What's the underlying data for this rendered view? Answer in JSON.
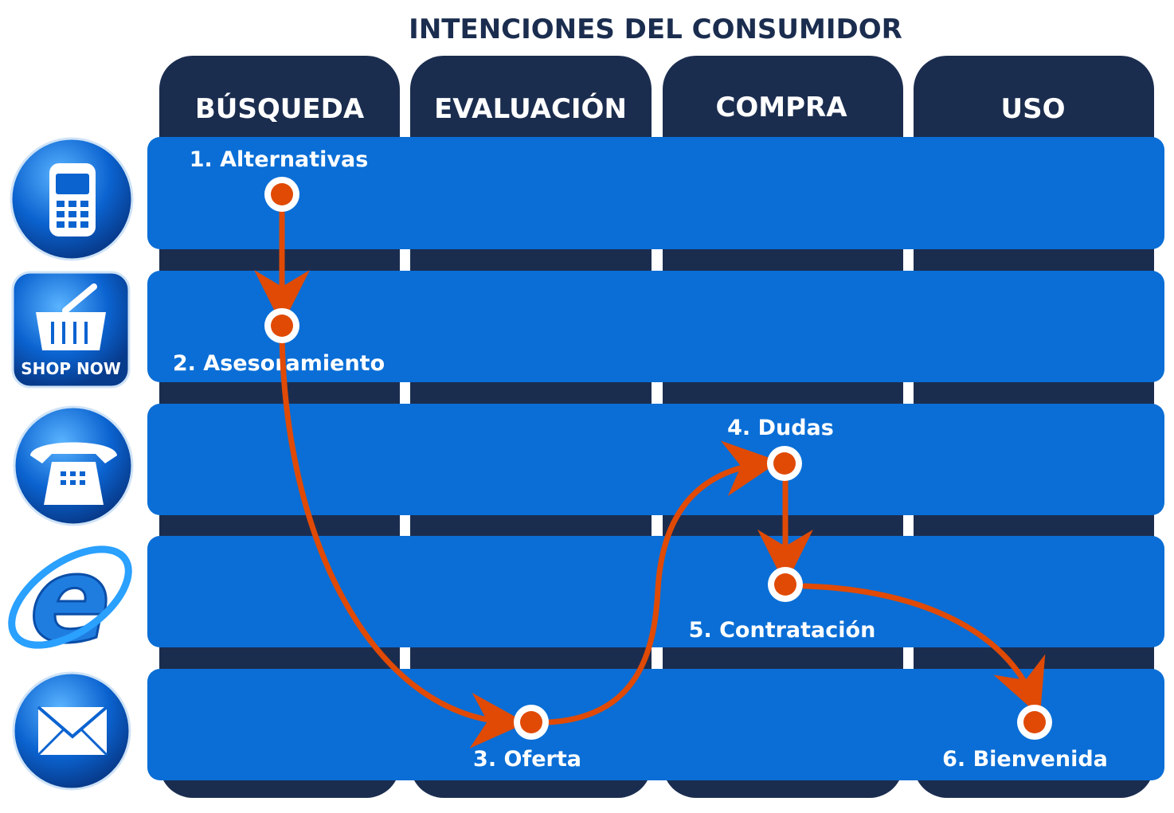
{
  "title": "INTENCIONES DEL CONSUMIDOR",
  "columns": [
    "BÚSQUEDA",
    "EVALUACIÓN",
    "COMPRA",
    "USO"
  ],
  "channels": [
    {
      "icon": "mobile-phone-icon"
    },
    {
      "icon": "shop-now-basket-icon",
      "label": "SHOP NOW"
    },
    {
      "icon": "telephone-icon"
    },
    {
      "icon": "internet-explorer-icon"
    },
    {
      "icon": "email-envelope-icon"
    }
  ],
  "steps": [
    {
      "label": "1. Alternativas",
      "column": "BÚSQUEDA",
      "channel_row": 1
    },
    {
      "label": "2. Asesoramiento",
      "column": "BÚSQUEDA",
      "channel_row": 2
    },
    {
      "label": "3. Oferta",
      "column": "EVALUACIÓN",
      "channel_row": 5
    },
    {
      "label": "4. Dudas",
      "column": "COMPRA",
      "channel_row": 3
    },
    {
      "label": "5. Contratación",
      "column": "COMPRA",
      "channel_row": 4
    },
    {
      "label": "6. Bienvenida",
      "column": "USO",
      "channel_row": 5
    }
  ],
  "colors": {
    "column": "#1b2d4f",
    "row": "#0a6ed6",
    "path": "#e04a05",
    "title": "#1b2d4f"
  }
}
